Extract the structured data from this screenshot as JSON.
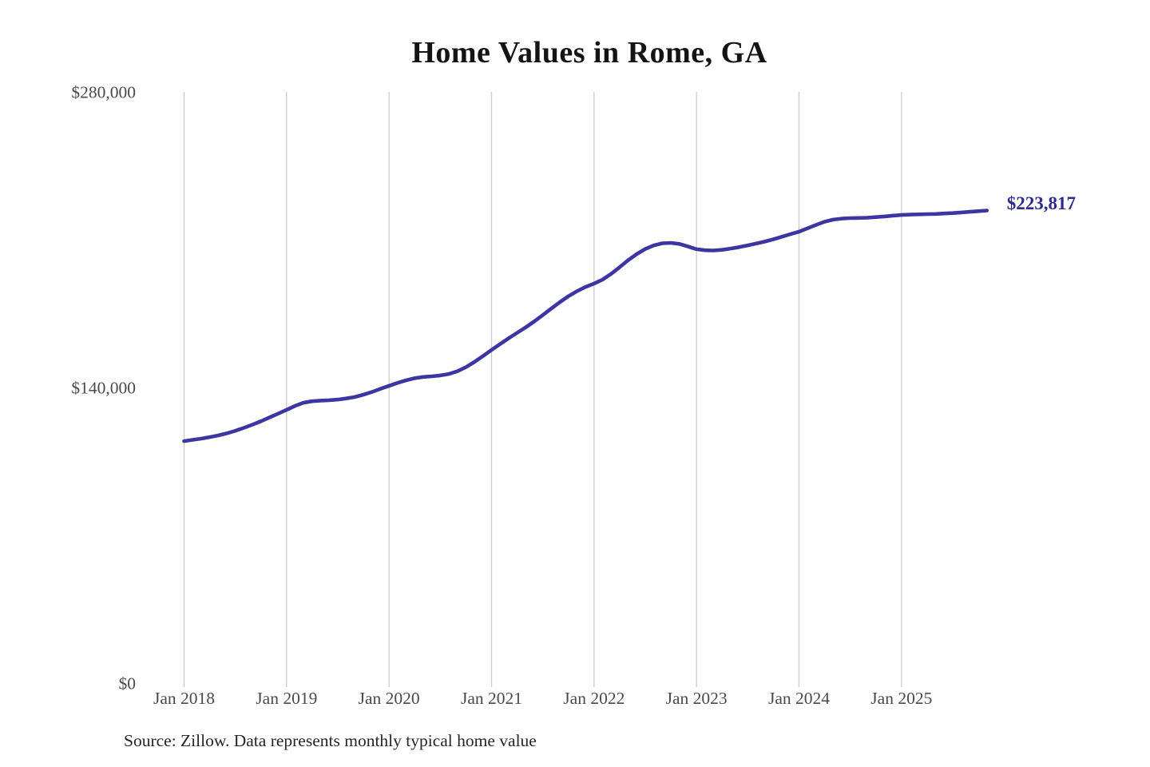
{
  "title": "Home Values in Rome, GA",
  "source_note": "Source: Zillow. Data represents monthly typical home value",
  "colors": {
    "line": "#3C35A2",
    "end_label": "#2E2B8E",
    "grid": "#CCCCCC",
    "tick_text": "#4A4A4A",
    "title_text": "#141414",
    "source_text": "#262626",
    "background": "#FFFFFF"
  },
  "chart_data": {
    "type": "line",
    "title": "Home Values in Rome, GA",
    "xlabel": "",
    "ylabel": "",
    "ylim": [
      0,
      280000
    ],
    "grid": "vertical-only",
    "legend": "none",
    "x_tick_labels": [
      "Jan 2018",
      "Jan 2019",
      "Jan 2020",
      "Jan 2021",
      "Jan 2022",
      "Jan 2023",
      "Jan 2024",
      "Jan 2025"
    ],
    "y_ticks": [
      {
        "value": 0,
        "label": "$0"
      },
      {
        "value": 140000,
        "label": "$140,000"
      },
      {
        "value": 280000,
        "label": "$280,000"
      }
    ],
    "series": [
      {
        "name": "Monthly typical home value",
        "unit": "USD",
        "x_start": "2018-01",
        "x_end": "2025-11",
        "interval": "monthly",
        "values": [
          114600,
          115200,
          115800,
          116500,
          117300,
          118300,
          119500,
          120900,
          122400,
          124000,
          125800,
          127600,
          129400,
          131300,
          132800,
          133500,
          133800,
          134000,
          134300,
          134800,
          135500,
          136600,
          137900,
          139400,
          140800,
          142200,
          143400,
          144400,
          145000,
          145300,
          145700,
          146400,
          147700,
          149600,
          152100,
          154900,
          157800,
          160600,
          163300,
          165900,
          168500,
          171300,
          174300,
          177400,
          180400,
          183200,
          185600,
          187600,
          189200,
          191100,
          193800,
          197000,
          200300,
          203200,
          205600,
          207300,
          208300,
          208500,
          208000,
          206800,
          205500,
          205000,
          204900,
          205200,
          205800,
          206500,
          207300,
          208200,
          209100,
          210200,
          211400,
          212600,
          213800,
          215400,
          217000,
          218500,
          219500,
          220000,
          220200,
          220300,
          220400,
          220700,
          221000,
          221400,
          221700,
          221900,
          222000,
          222100,
          222200,
          222400,
          222600,
          222900,
          223200,
          223500,
          223817
        ]
      }
    ],
    "last_value": 223817,
    "last_value_label": "$223,817"
  }
}
